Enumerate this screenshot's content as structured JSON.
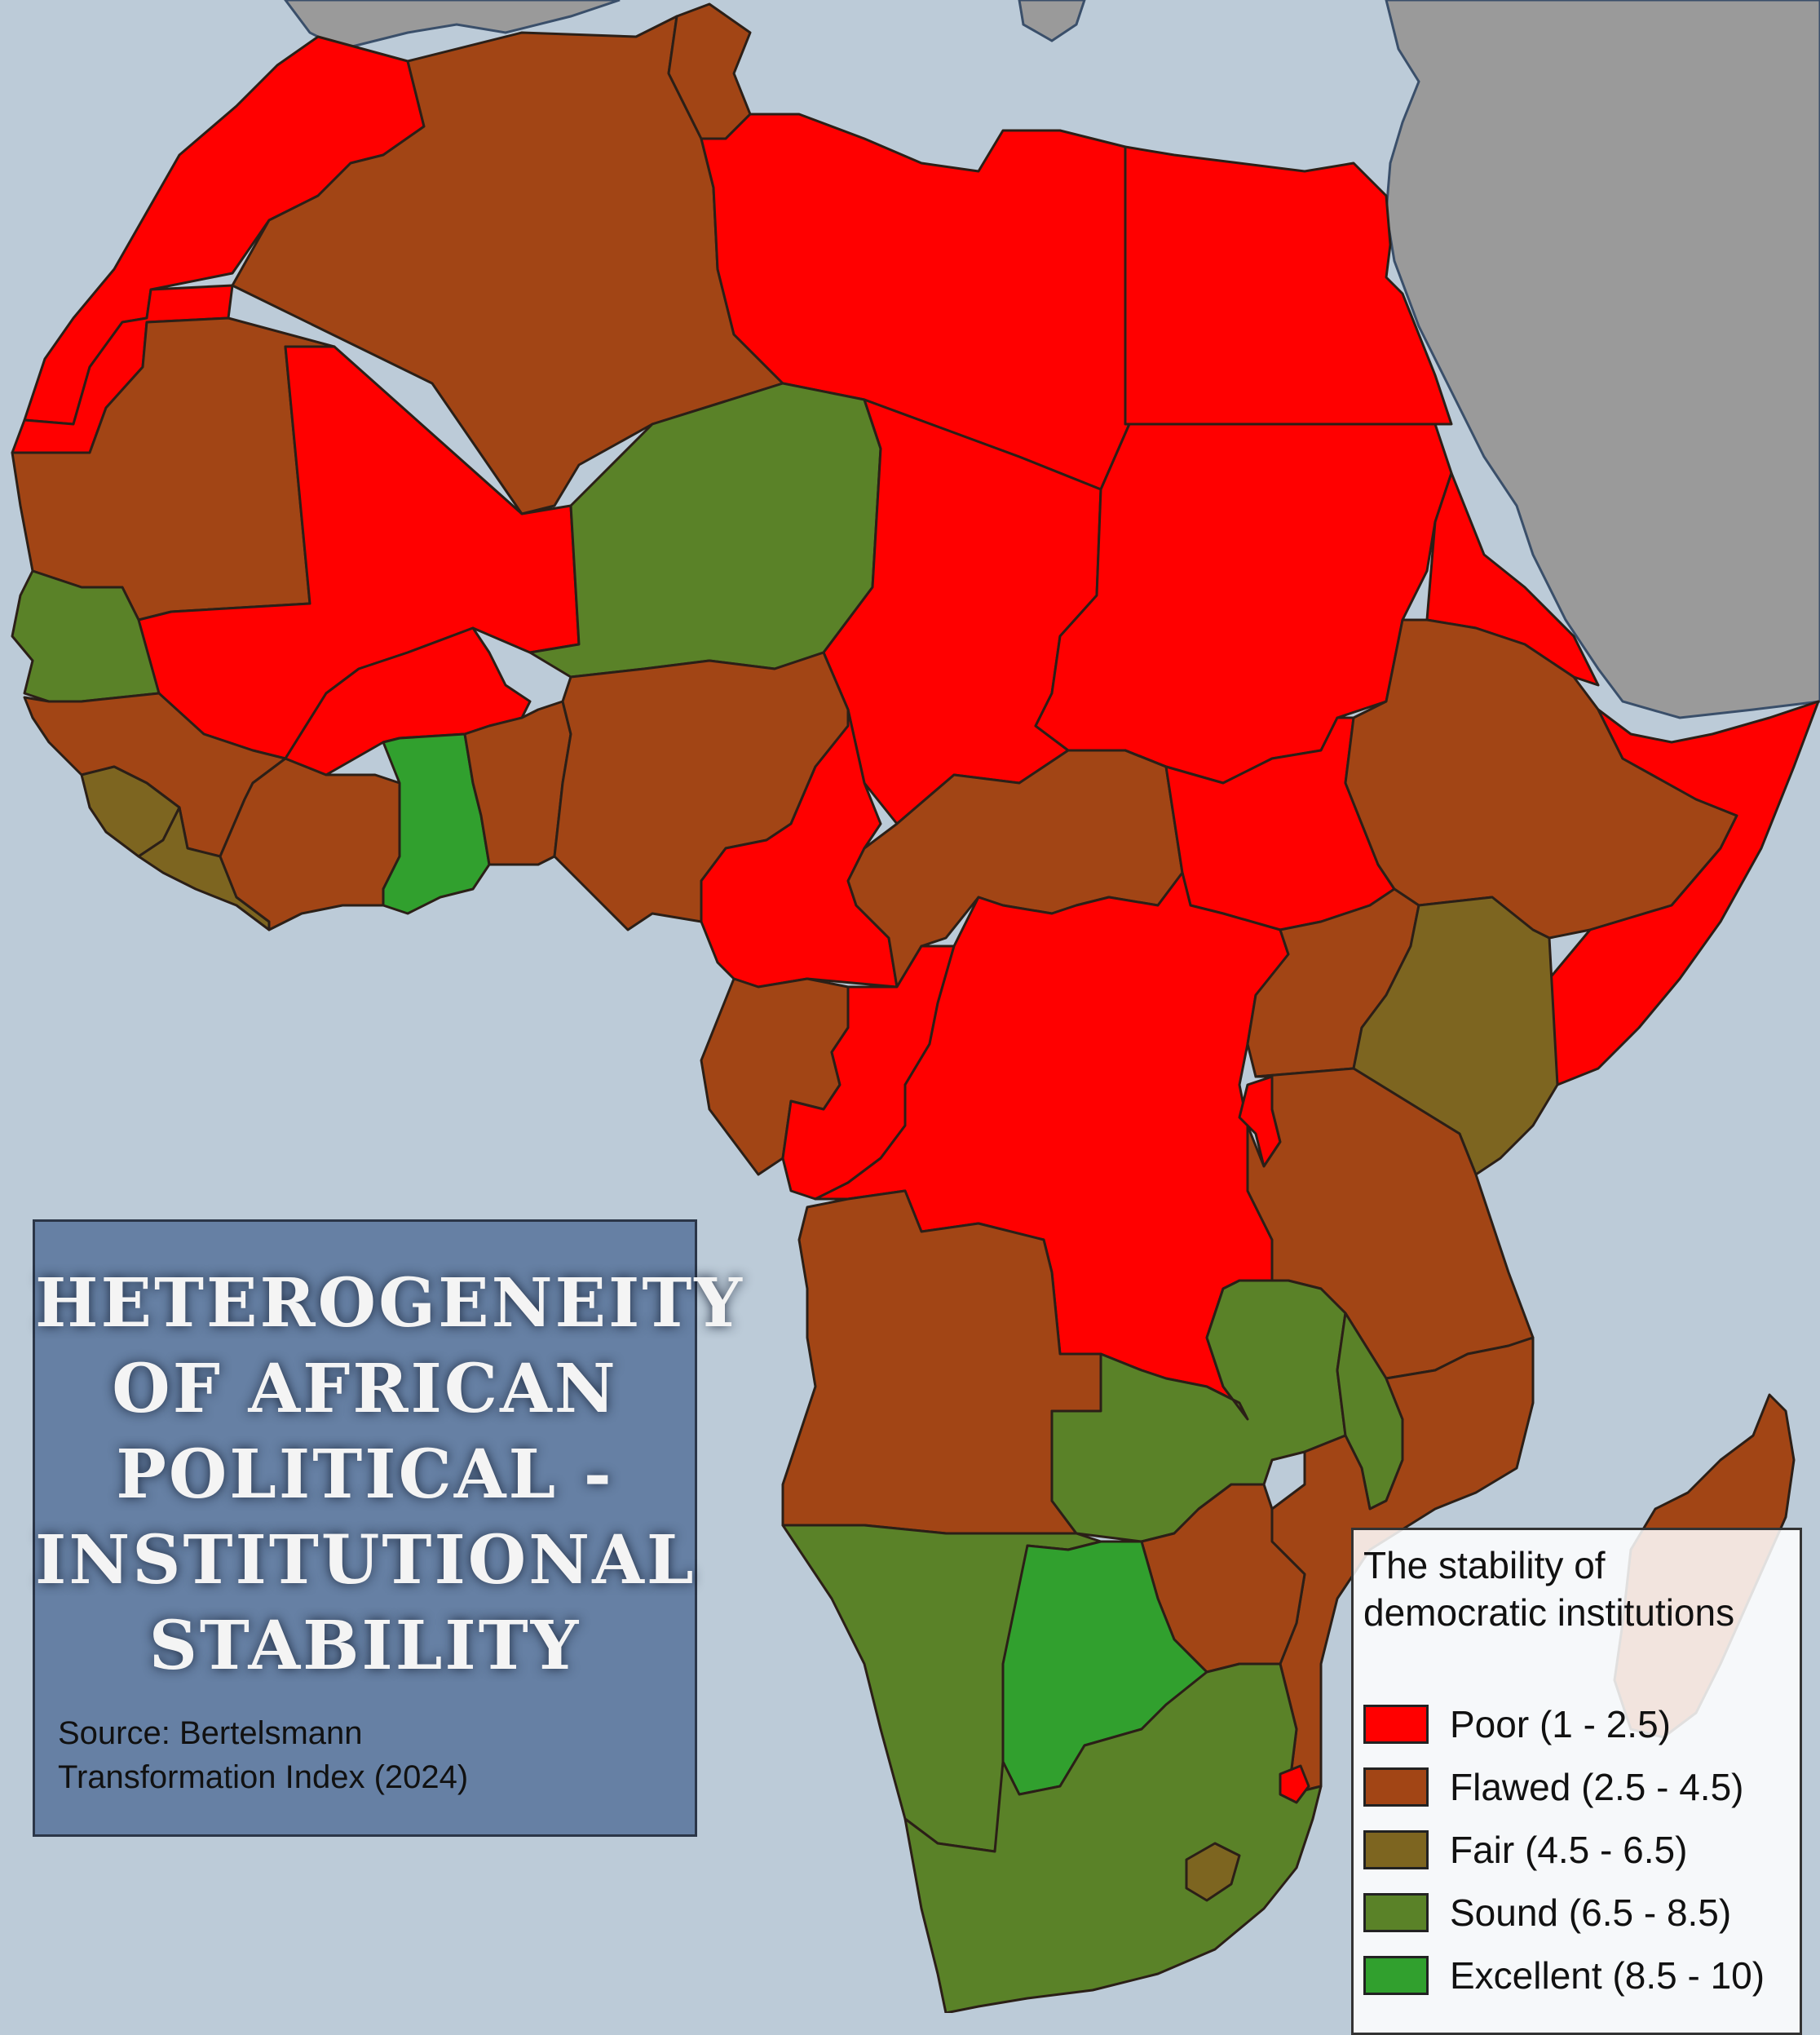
{
  "title": {
    "lines": [
      "HETEROGENEITY",
      "OF AFRICAN",
      "POLITICAL -",
      "INSTITUTIONAL",
      "STABILITY"
    ],
    "source_lines": [
      "Source: Bertelsmann",
      "Transformation Index (2024)"
    ]
  },
  "legend": {
    "title_lines": [
      "The stability of",
      "democratic institutions"
    ],
    "items": [
      {
        "key": "poor",
        "label": "Poor (1 - 2.5)",
        "color": "#ff0000"
      },
      {
        "key": "flawed",
        "label": "Flawed (2.5 - 4.5)",
        "color": "#a24515"
      },
      {
        "key": "fair",
        "label": "Fair (4.5 - 6.5)",
        "color": "#7d6520"
      },
      {
        "key": "sound",
        "label": "Sound (6.5 - 8.5)",
        "color": "#5a8228"
      },
      {
        "key": "excellent",
        "label": "Excellent (8.5 - 10)",
        "color": "#31a02e"
      }
    ]
  },
  "colors": {
    "sea": "#bccbd8",
    "other_land": "#9a9a9a",
    "border": "#2b1f17"
  },
  "countries": [
    {
      "id": "morocco",
      "category": "poor"
    },
    {
      "id": "western-sahara",
      "category": "poor"
    },
    {
      "id": "algeria",
      "category": "flawed"
    },
    {
      "id": "tunisia",
      "category": "flawed"
    },
    {
      "id": "libya",
      "category": "poor"
    },
    {
      "id": "egypt",
      "category": "poor"
    },
    {
      "id": "mauritania",
      "category": "flawed"
    },
    {
      "id": "mali",
      "category": "poor"
    },
    {
      "id": "niger",
      "category": "sound"
    },
    {
      "id": "chad",
      "category": "poor"
    },
    {
      "id": "sudan",
      "category": "poor"
    },
    {
      "id": "eritrea",
      "category": "poor"
    },
    {
      "id": "senegal",
      "category": "sound"
    },
    {
      "id": "guinea",
      "category": "flawed"
    },
    {
      "id": "sierra-leone",
      "category": "fair"
    },
    {
      "id": "liberia",
      "category": "fair"
    },
    {
      "id": "cote-divoire",
      "category": "flawed"
    },
    {
      "id": "burkina-faso",
      "category": "poor"
    },
    {
      "id": "ghana",
      "category": "excellent"
    },
    {
      "id": "togo-benin",
      "category": "flawed"
    },
    {
      "id": "nigeria",
      "category": "flawed"
    },
    {
      "id": "cameroon",
      "category": "poor"
    },
    {
      "id": "central-african-republic",
      "category": "flawed"
    },
    {
      "id": "south-sudan",
      "category": "poor"
    },
    {
      "id": "ethiopia",
      "category": "flawed"
    },
    {
      "id": "somalia",
      "category": "poor"
    },
    {
      "id": "gabon",
      "category": "flawed"
    },
    {
      "id": "congo",
      "category": "poor"
    },
    {
      "id": "dr-congo",
      "category": "poor"
    },
    {
      "id": "uganda",
      "category": "flawed"
    },
    {
      "id": "kenya",
      "category": "fair"
    },
    {
      "id": "rwanda-burundi",
      "category": "poor"
    },
    {
      "id": "tanzania",
      "category": "flawed"
    },
    {
      "id": "angola",
      "category": "flawed"
    },
    {
      "id": "zambia",
      "category": "sound"
    },
    {
      "id": "malawi",
      "category": "sound"
    },
    {
      "id": "mozambique",
      "category": "flawed"
    },
    {
      "id": "zimbabwe",
      "category": "flawed"
    },
    {
      "id": "namibia",
      "category": "sound"
    },
    {
      "id": "botswana",
      "category": "excellent"
    },
    {
      "id": "south-africa",
      "category": "sound"
    },
    {
      "id": "lesotho",
      "category": "fair"
    },
    {
      "id": "eswatini",
      "category": "poor"
    },
    {
      "id": "madagascar",
      "category": "flawed"
    }
  ]
}
